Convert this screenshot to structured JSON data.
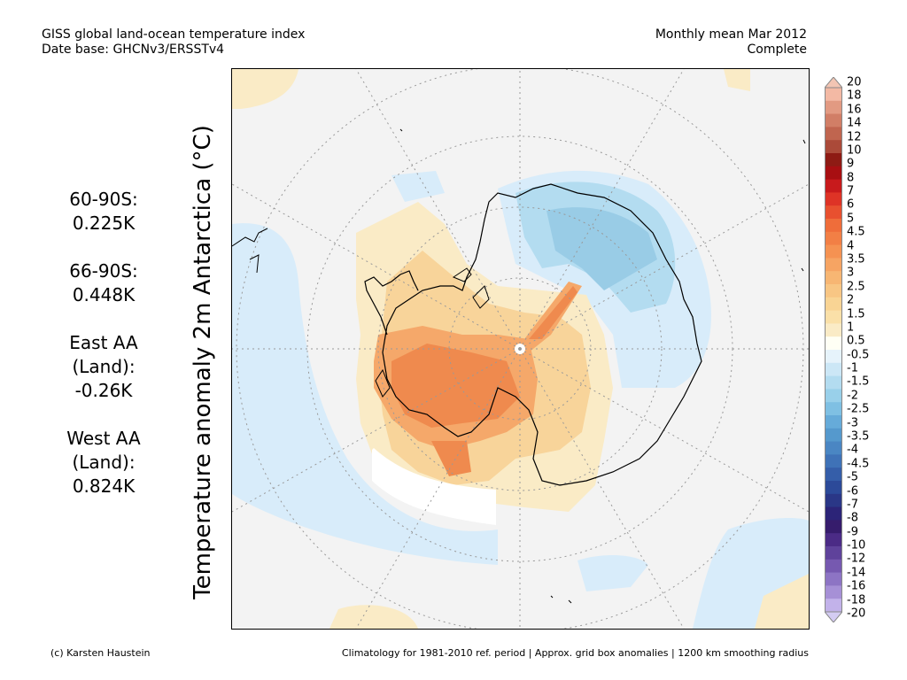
{
  "header": {
    "title_line1": "GISS global land-ocean temperature index",
    "title_line2": "Date base: GHCNv3/ERSSTv4",
    "period_line1": "Monthly mean Mar 2012",
    "period_line2": "Complete"
  },
  "axis_label": "Temperature anomaly 2m Antarctica (°C)",
  "stats": [
    {
      "label": "60-90S:",
      "value": "0.225K"
    },
    {
      "label": "66-90S:",
      "value": "0.448K"
    },
    {
      "label_line1": "East AA",
      "label_line2": "(Land):",
      "value": "-0.26K"
    },
    {
      "label_line1": "West AA",
      "label_line2": "(Land):",
      "value": "0.824K"
    }
  ],
  "colorbar": {
    "labels": [
      "20",
      "18",
      "16",
      "14",
      "12",
      "10",
      "9",
      "8",
      "7",
      "6",
      "5",
      "4.5",
      "4",
      "3.5",
      "3",
      "2.5",
      "2",
      "1.5",
      "1",
      "0.5",
      "-0.5",
      "-1",
      "-1.5",
      "-2",
      "-2.5",
      "-3",
      "-3.5",
      "-4",
      "-4.5",
      "-5",
      "-6",
      "-7",
      "-8",
      "-9",
      "-10",
      "-12",
      "-14",
      "-16",
      "-18",
      "-20"
    ],
    "colors": [
      "#f3b9a4",
      "#e29a82",
      "#d17e66",
      "#c0654f",
      "#ab4a39",
      "#8e1b14",
      "#a80f12",
      "#c81a1c",
      "#de3326",
      "#e8502f",
      "#ef6d3a",
      "#f27f45",
      "#f59252",
      "#f6a463",
      "#f7b673",
      "#f8c684",
      "#f9d494",
      "#fae0a8",
      "#faebc6",
      "#fffff5",
      "#e6f3fb",
      "#cce7f6",
      "#b3dcf0",
      "#99d0ea",
      "#7fc0e3",
      "#66abd9",
      "#5599cd",
      "#4a86c3",
      "#3f72b7",
      "#355ea9",
      "#2c4a99",
      "#2a3787",
      "#2c2478",
      "#361c6c",
      "#4b2b86",
      "#5f429b",
      "#7659b0",
      "#8d74c4",
      "#a690d6",
      "#c2b2ea"
    ],
    "cap_top": "#f3c5b3",
    "cap_bottom": "#d4ccf2"
  },
  "map": {
    "background": "#f3f3f3",
    "ocean_blue_light": "#d8ecfa",
    "blue_mid": "#b3dcf0",
    "blue_dark": "#99cce6",
    "warm_light": "#faebc6",
    "warm_mid": "#f8d49a",
    "warm_orange": "#f5a86a",
    "warm_deep": "#ef8a4e",
    "warm_red": "#e8703a",
    "missing": "#ffffff"
  },
  "footer": {
    "credit": "(c) Karsten Haustein",
    "note": "Climatology for 1981-2010 ref. period | Approx. grid box anomalies | 1200 km smoothing radius"
  }
}
